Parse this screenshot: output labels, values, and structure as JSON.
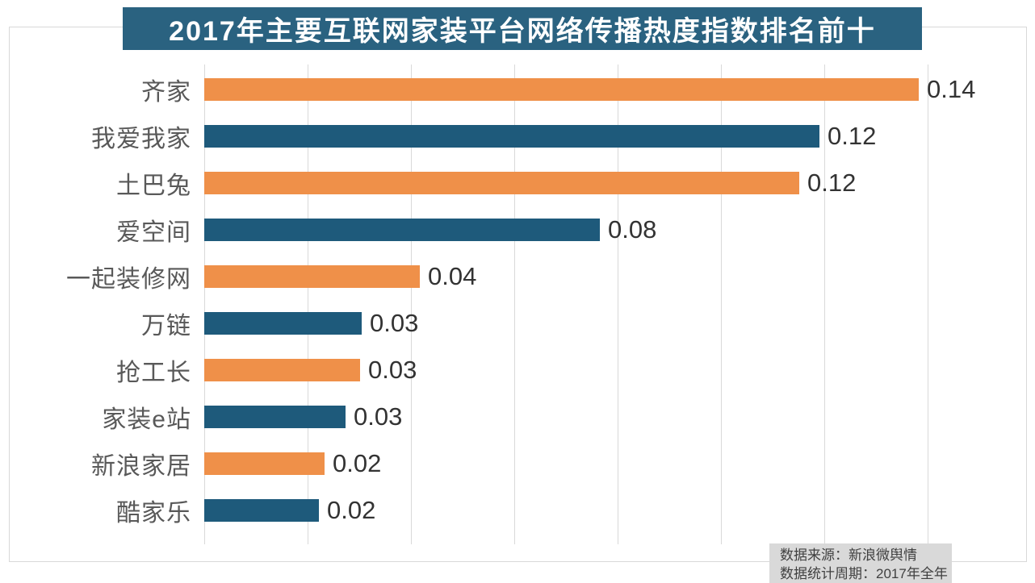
{
  "title": {
    "text": "2017年主要互联网家装平台网络传播热度指数排名前十"
  },
  "source": {
    "line1": "数据来源：新浪微舆情",
    "line2": "数据统计周期：2017年全年"
  },
  "colors": {
    "banner_bg": "#2a6280",
    "bar_orange": "#ef9049",
    "bar_blue": "#1e5a7b",
    "gridline": "#d9d9d9",
    "category_label": "#595959",
    "value_label": "#333333",
    "source_bg": "#d9d9d9",
    "source_text": "#404040"
  },
  "chart_data": {
    "type": "bar",
    "orientation": "horizontal",
    "title": "2017年主要互联网家装平台网络传播热度指数排名前十",
    "categories": [
      "齐家",
      "我爱我家",
      "土巴兔",
      "爱空间",
      "一起装修网",
      "万链",
      "抢工长",
      "家装e站",
      "新浪家居",
      "酷家乐"
    ],
    "values": [
      0.14,
      0.12,
      0.12,
      0.08,
      0.04,
      0.03,
      0.03,
      0.03,
      0.02,
      0.02
    ],
    "value_labels": [
      "0.14",
      "0.12",
      "0.12",
      "0.08",
      "0.04",
      "0.03",
      "0.03",
      "0.03",
      "0.02",
      "0.02"
    ],
    "bar_lengths_precise": [
      0.1383,
      0.119,
      0.1152,
      0.0766,
      0.0417,
      0.0304,
      0.0302,
      0.0273,
      0.0233,
      0.0222
    ],
    "xlim": [
      0,
      0.16
    ],
    "grid_interval": 0.02,
    "grid": true,
    "legend": false,
    "xlabel": "",
    "ylabel": "",
    "bar_color_pattern": "alternating orange/blue starting with orange"
  }
}
